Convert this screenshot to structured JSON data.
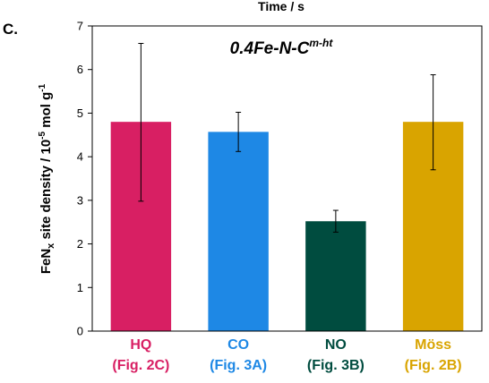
{
  "panel_label": "C.",
  "top_clipped_text": "Time / s",
  "chart_data": {
    "type": "bar",
    "title": "0.4Fe-N-C",
    "title_superscript": "m-ht",
    "ylabel": {
      "base": "FeN",
      "sub": "x",
      "rest": " site density / 10",
      "exp": "-5",
      "unit": " mol g",
      "unit_exp": "-1"
    },
    "ylim": [
      0,
      7
    ],
    "yticks": [
      0,
      1,
      2,
      3,
      4,
      5,
      6,
      7
    ],
    "categories": [
      {
        "name": "HQ",
        "ref": "(Fig. 2C)",
        "color": "#d81f63"
      },
      {
        "name": "CO",
        "ref": "(Fig. 3A)",
        "color": "#1e88e5"
      },
      {
        "name": "NO",
        "ref": "(Fig. 3B)",
        "color": "#004c3f"
      },
      {
        "name": "Möss",
        "ref": "(Fig. 2B)",
        "color": "#d9a400"
      }
    ],
    "values": [
      4.8,
      4.57,
      2.52,
      4.8
    ],
    "error_low": [
      2.98,
      4.12,
      2.27,
      3.7
    ],
    "error_high": [
      6.6,
      5.02,
      2.77,
      5.88
    ],
    "grid": false,
    "legend": "none"
  }
}
